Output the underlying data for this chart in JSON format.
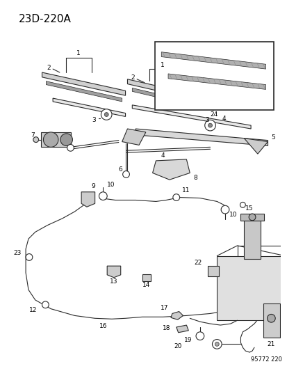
{
  "title": "23D-220A",
  "diagram_id": "95772 220",
  "bg_color": "#ffffff",
  "line_color": "#2a2a2a",
  "label_color": "#000000",
  "font_size_title": 11,
  "font_size_label": 6.5,
  "figw": 4.14,
  "figh": 5.33,
  "dpi": 100,
  "lw": 0.8,
  "lw_thick": 1.5,
  "lw_blade": 2.5
}
